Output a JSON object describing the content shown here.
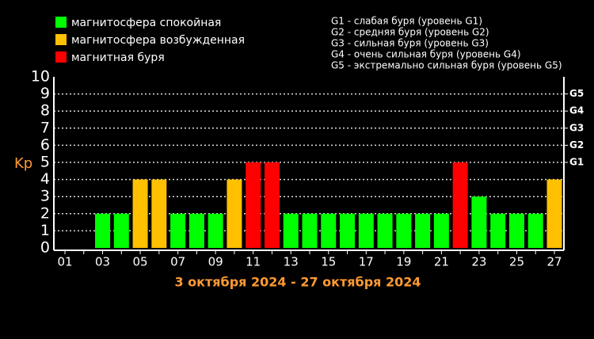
{
  "chart_data": {
    "type": "bar",
    "y_label": "Kp",
    "x_label": "3 октября 2024 - 27 октября 2024",
    "notes": [
      "G1 - слабая буря (уровень G1)",
      "G2 - средняя буря (уровень G2)",
      "G3 - сильная буря (уровень G3)",
      "G4 - очень сильная буря (уровень G4)",
      "G5 - экстремально сильная буря (уровень G5)"
    ],
    "categories": [
      "01",
      null,
      "03",
      null,
      "05",
      null,
      "07",
      null,
      "09",
      null,
      "11",
      null,
      "13",
      null,
      "15",
      null,
      "17",
      null,
      "19",
      null,
      "21",
      null,
      "23",
      null,
      "25",
      null,
      "27"
    ],
    "series": [
      {
        "name": "магнитосфера спокойная",
        "color": "#00ff00",
        "values": [
          null,
          null,
          2,
          2,
          null,
          null,
          2,
          2,
          2,
          null,
          null,
          null,
          2,
          2,
          2,
          2,
          2,
          2,
          2,
          2,
          2,
          null,
          3,
          2,
          2,
          2,
          null
        ]
      },
      {
        "name": "магнитосфера возбужденная",
        "color": "#ffc000",
        "values": [
          null,
          null,
          null,
          null,
          4,
          4,
          null,
          null,
          null,
          4,
          null,
          null,
          null,
          null,
          null,
          null,
          null,
          null,
          null,
          null,
          null,
          null,
          null,
          null,
          null,
          null,
          4
        ]
      },
      {
        "name": "магнитная буря",
        "color": "#ff0000",
        "values": [
          null,
          null,
          null,
          null,
          null,
          null,
          null,
          null,
          null,
          null,
          5,
          5,
          null,
          null,
          null,
          null,
          null,
          null,
          null,
          null,
          null,
          5,
          null,
          null,
          null,
          null,
          null
        ]
      }
    ],
    "ylim": [
      0,
      10
    ],
    "yticks": [
      0,
      1,
      2,
      3,
      4,
      5,
      6,
      7,
      8,
      9,
      10
    ],
    "y2lim": [
      0,
      10
    ],
    "y2ticks": [
      {
        "value": 5,
        "label": "G1"
      },
      {
        "value": 6,
        "label": "G2"
      },
      {
        "value": 7,
        "label": "G3"
      },
      {
        "value": 8,
        "label": "G4"
      },
      {
        "value": 9,
        "label": "G5"
      }
    ],
    "grid": true
  }
}
